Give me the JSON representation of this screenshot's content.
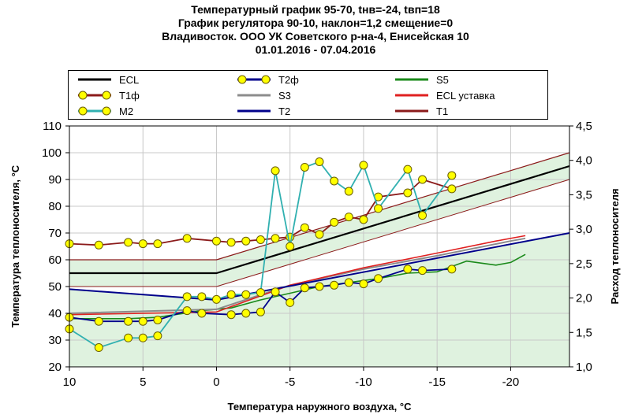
{
  "chart_data": {
    "type": "line",
    "title": [
      "Температурный график 95-70, tнв=-24, tвп=18",
      "График регулятора 90-10, наклон=1,2 смещение=0",
      "Владивосток. ООО УК Советского р-на-4, Енисейская 10",
      "01.01.2016 - 07.04.2016"
    ],
    "xlabel": "Температура наружного воздуха, °C",
    "ylabel": "Температура теплоносителя, °C",
    "y2label": "Расход теплоносителя",
    "xlim": [
      10,
      -24
    ],
    "ylim": [
      20,
      110
    ],
    "y2lim": [
      1.0,
      4.5
    ],
    "x_ticks": [
      "10",
      "5",
      "0",
      "-5",
      "-10",
      "-15",
      "-20"
    ],
    "y_ticks": [
      "20",
      "30",
      "40",
      "50",
      "60",
      "70",
      "80",
      "90",
      "100",
      "110"
    ],
    "y2_ticks": [
      "1,0",
      "1,5",
      "2,0",
      "2,5",
      "3,0",
      "3,5",
      "4,0",
      "4,5"
    ],
    "grid": true,
    "legend_position": "top",
    "legend_layout": [
      [
        "ECL",
        "T2ф",
        "S5"
      ],
      [
        "T1ф",
        "S3",
        "ECL уставка"
      ],
      [
        "M2",
        "T2",
        "T1"
      ]
    ],
    "series": [
      {
        "name": "ECL",
        "color": "#000000",
        "marker": false,
        "axis": "left",
        "x": [
          10,
          0,
          -24
        ],
        "y": [
          55,
          55,
          95
        ]
      },
      {
        "name": "T2ф",
        "color": "#00008b",
        "marker": true,
        "axis": "left",
        "x": [
          10,
          8,
          6,
          5,
          4,
          2,
          1,
          -1,
          -2,
          -3,
          -4,
          -5,
          -6,
          -7,
          -8,
          -9,
          -10,
          -11,
          -13,
          -14,
          -16
        ],
        "y": [
          38.5,
          37,
          37,
          37,
          37.5,
          41,
          40,
          39.5,
          40,
          40.5,
          48,
          44,
          49.5,
          50,
          50.5,
          51.5,
          51,
          53,
          56.5,
          56,
          56.5
        ]
      },
      {
        "name": "S5",
        "color": "#1a8a1a",
        "marker": false,
        "axis": "left",
        "x": [
          10,
          6,
          4,
          1,
          -1,
          -3,
          -5,
          -7,
          -9,
          -11,
          -13,
          -15,
          -17,
          -19,
          -20,
          -21
        ],
        "y": [
          38,
          38,
          38.5,
          41,
          42,
          45,
          47.5,
          50,
          51.5,
          53,
          55,
          55.5,
          59.5,
          58,
          59,
          62
        ]
      },
      {
        "name": "T1ф",
        "color": "#8b1a1a",
        "marker": true,
        "axis": "left",
        "x": [
          10,
          8,
          6,
          5,
          4,
          2,
          0,
          -1,
          -2,
          -3,
          -4,
          -5,
          -6,
          -7,
          -8,
          -9,
          -10,
          -11,
          -13,
          -14,
          -16
        ],
        "y": [
          66,
          65.5,
          66.5,
          66,
          66,
          68,
          67,
          66.5,
          67,
          67.5,
          68,
          68.5,
          72,
          69.5,
          74,
          76,
          75,
          83.5,
          85,
          90,
          86.5
        ]
      },
      {
        "name": "S3",
        "color": "#8c8c8c",
        "marker": false,
        "axis": "left",
        "x": [
          10,
          0,
          -5,
          -10,
          -15,
          -20,
          -21
        ],
        "y": [
          40,
          41.5,
          50.5,
          56.5,
          61.5,
          67,
          68
        ]
      },
      {
        "name": "ECL уставка",
        "color": "#e02020",
        "marker": false,
        "axis": "left",
        "x": [
          10,
          0,
          -5,
          -10,
          -15,
          -19,
          -21
        ],
        "y": [
          39.5,
          40.5,
          50.5,
          57,
          62.5,
          67,
          69
        ]
      },
      {
        "name": "M2",
        "color": "#30b0b0",
        "marker": true,
        "axis": "right",
        "x": [
          10,
          8,
          6,
          5,
          4,
          2,
          1,
          0,
          -1,
          -2,
          -3,
          -4,
          -5,
          -6,
          -7,
          -8,
          -9,
          -10,
          -11,
          -13,
          -14,
          -16
        ],
        "y": [
          1.55,
          1.28,
          1.42,
          1.42,
          1.45,
          2.02,
          2.02,
          1.98,
          2.05,
          2.05,
          2.08,
          3.85,
          2.75,
          3.9,
          3.98,
          3.7,
          3.55,
          3.93,
          3.3,
          3.87,
          3.2,
          3.78
        ]
      },
      {
        "name": "T2",
        "color": "#00008b",
        "marker": false,
        "axis": "left",
        "x": [
          10,
          0,
          -24
        ],
        "y": [
          49,
          45,
          70
        ]
      },
      {
        "name": "T1",
        "color": "#8b1a1a",
        "marker": false,
        "axis": "left",
        "x": [
          10,
          0,
          -24
        ],
        "y": [
          60,
          60,
          100
        ]
      }
    ],
    "bands": [
      {
        "name": "ECL-band",
        "color": "#dff2df",
        "x": [
          10,
          0,
          -24
        ],
        "upper": [
          60,
          60,
          100
        ],
        "lower": [
          50,
          50,
          90
        ]
      },
      {
        "name": "T2-area",
        "color": "#dff2df",
        "x": [
          10,
          0,
          -24
        ],
        "upper": [
          49,
          45,
          70
        ],
        "lower": [
          20,
          20,
          20
        ]
      }
    ],
    "extra_lines": [
      {
        "name": "ECL-band-lower",
        "color": "#8b1a1a",
        "x": [
          10,
          0,
          -24
        ],
        "y": [
          50,
          50,
          90
        ]
      }
    ]
  }
}
